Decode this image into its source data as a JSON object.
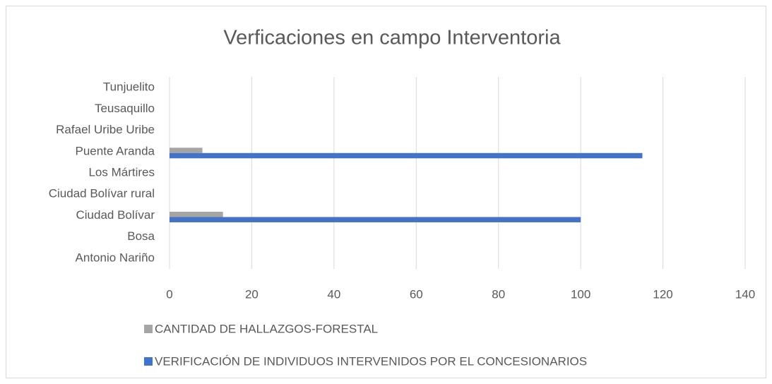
{
  "chart_data": {
    "type": "hbar",
    "title": "Verficaciones en campo Interventoria",
    "categories": [
      "Antonio Nariño",
      "Bosa",
      "Ciudad Bolívar",
      "Ciudad Bolívar rural",
      "Los Mártires",
      "Puente Aranda",
      "Rafael Uribe Uribe",
      "Teusaquillo",
      "Tunjuelito"
    ],
    "series": [
      {
        "name": "CANTIDAD DE HALLAZGOS-FORESTAL",
        "color": "#a5a5a5",
        "values": [
          0,
          0,
          13,
          0,
          0,
          8,
          0,
          0,
          0
        ]
      },
      {
        "name": "VERIFICACIÓN DE INDIVIDUOS INTERVENIDOS POR EL CONCESIONARIOS",
        "color": "#4472c4",
        "values": [
          0,
          0,
          100,
          0,
          0,
          115,
          0,
          0,
          0
        ]
      }
    ],
    "xlim": [
      0,
      140
    ],
    "xticks": [
      0,
      20,
      40,
      60,
      80,
      100,
      120,
      140
    ],
    "grid": true
  }
}
